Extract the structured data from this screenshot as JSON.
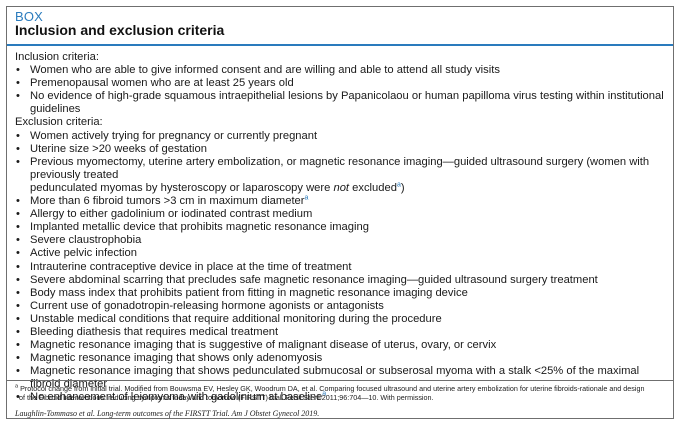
{
  "box": {
    "label": "BOX",
    "title": "Inclusion and exclusion criteria"
  },
  "inclusion": {
    "heading": "Inclusion criteria:",
    "items": [
      "Women who are able to give informed consent and are willing and able to attend all study visits",
      "Premenopausal women who are at least 25 years old",
      "No evidence of high-grade squamous intraepithelial lesions by Papanicolaou or human papilloma virus testing within institutional guidelines"
    ]
  },
  "exclusion": {
    "heading": "Exclusion criteria:",
    "items": {
      "i0": "Women actively trying for pregnancy or currently pregnant",
      "i1": "Uterine size >20 weeks of gestation",
      "i2_line1": "Previous myomectomy, uterine artery embolization, or magnetic resonance imaging—guided ultrasound surgery (women with previously treated",
      "i2_line2_pre": "pedunculated myomas by hysteroscopy or laparoscopy were ",
      "i2_line2_em": "not",
      "i2_line2_post": " excluded",
      "i2_line2_close": ")",
      "i3": "More than 6 fibroid tumors >3 cm in maximum diameter",
      "i4": "Allergy to either gadolinium or iodinated contrast medium",
      "i5": "Implanted metallic device that prohibits magnetic resonance imaging",
      "i6": "Severe claustrophobia",
      "i7": "Active pelvic infection",
      "i8": "Intrauterine contraceptive device in place at the time of treatment",
      "i9": "Severe abdominal scarring that precludes safe magnetic resonance imaging—guided ultrasound surgery treatment",
      "i10": "Body mass index that prohibits patient from fitting in magnetic resonance imaging device",
      "i11": "Current use of gonadotropin-releasing hormone agonists or antagonists",
      "i12": "Unstable medical conditions that require additional monitoring during the procedure",
      "i13": "Bleeding diathesis that requires medical treatment",
      "i14": "Magnetic resonance imaging that is suggestive of malignant disease of uterus, ovary, or cervix",
      "i15": "Magnetic resonance imaging that shows only adenomyosis",
      "i16": "Magnetic resonance imaging that shows pedunculated submucosal or subserosal myoma with a stalk <25% of the maximal fibroid diameter",
      "i17": "No enhancement of leiomyoma with gadolinium at baseline"
    }
  },
  "footnote_marker": "a",
  "bullet_glyph": "•",
  "footnote": {
    "marker": "a",
    "line1": "Protocol change from initial trial. Modified from Bouwsma EV, Hesley GK, Woodrum DA, et al. Comparing focused ultrasound and uterine artery embolization for uterine fibroids-rationale and design",
    "line2": "of the Fibroid Interventions: reducing symptoms today and tomorrow (FIRSTT) trial. Fertil Steril 2011;96:704—10. With permission."
  },
  "citation": "Laughlin-Tommaso et al. Long-term outcomes of the FIRSTT Trial. Am J Obstet Gynecol 2019.",
  "colors": {
    "accent": "#2a7bbd",
    "border": "#6f6f6f",
    "text": "#1a1a1a"
  }
}
